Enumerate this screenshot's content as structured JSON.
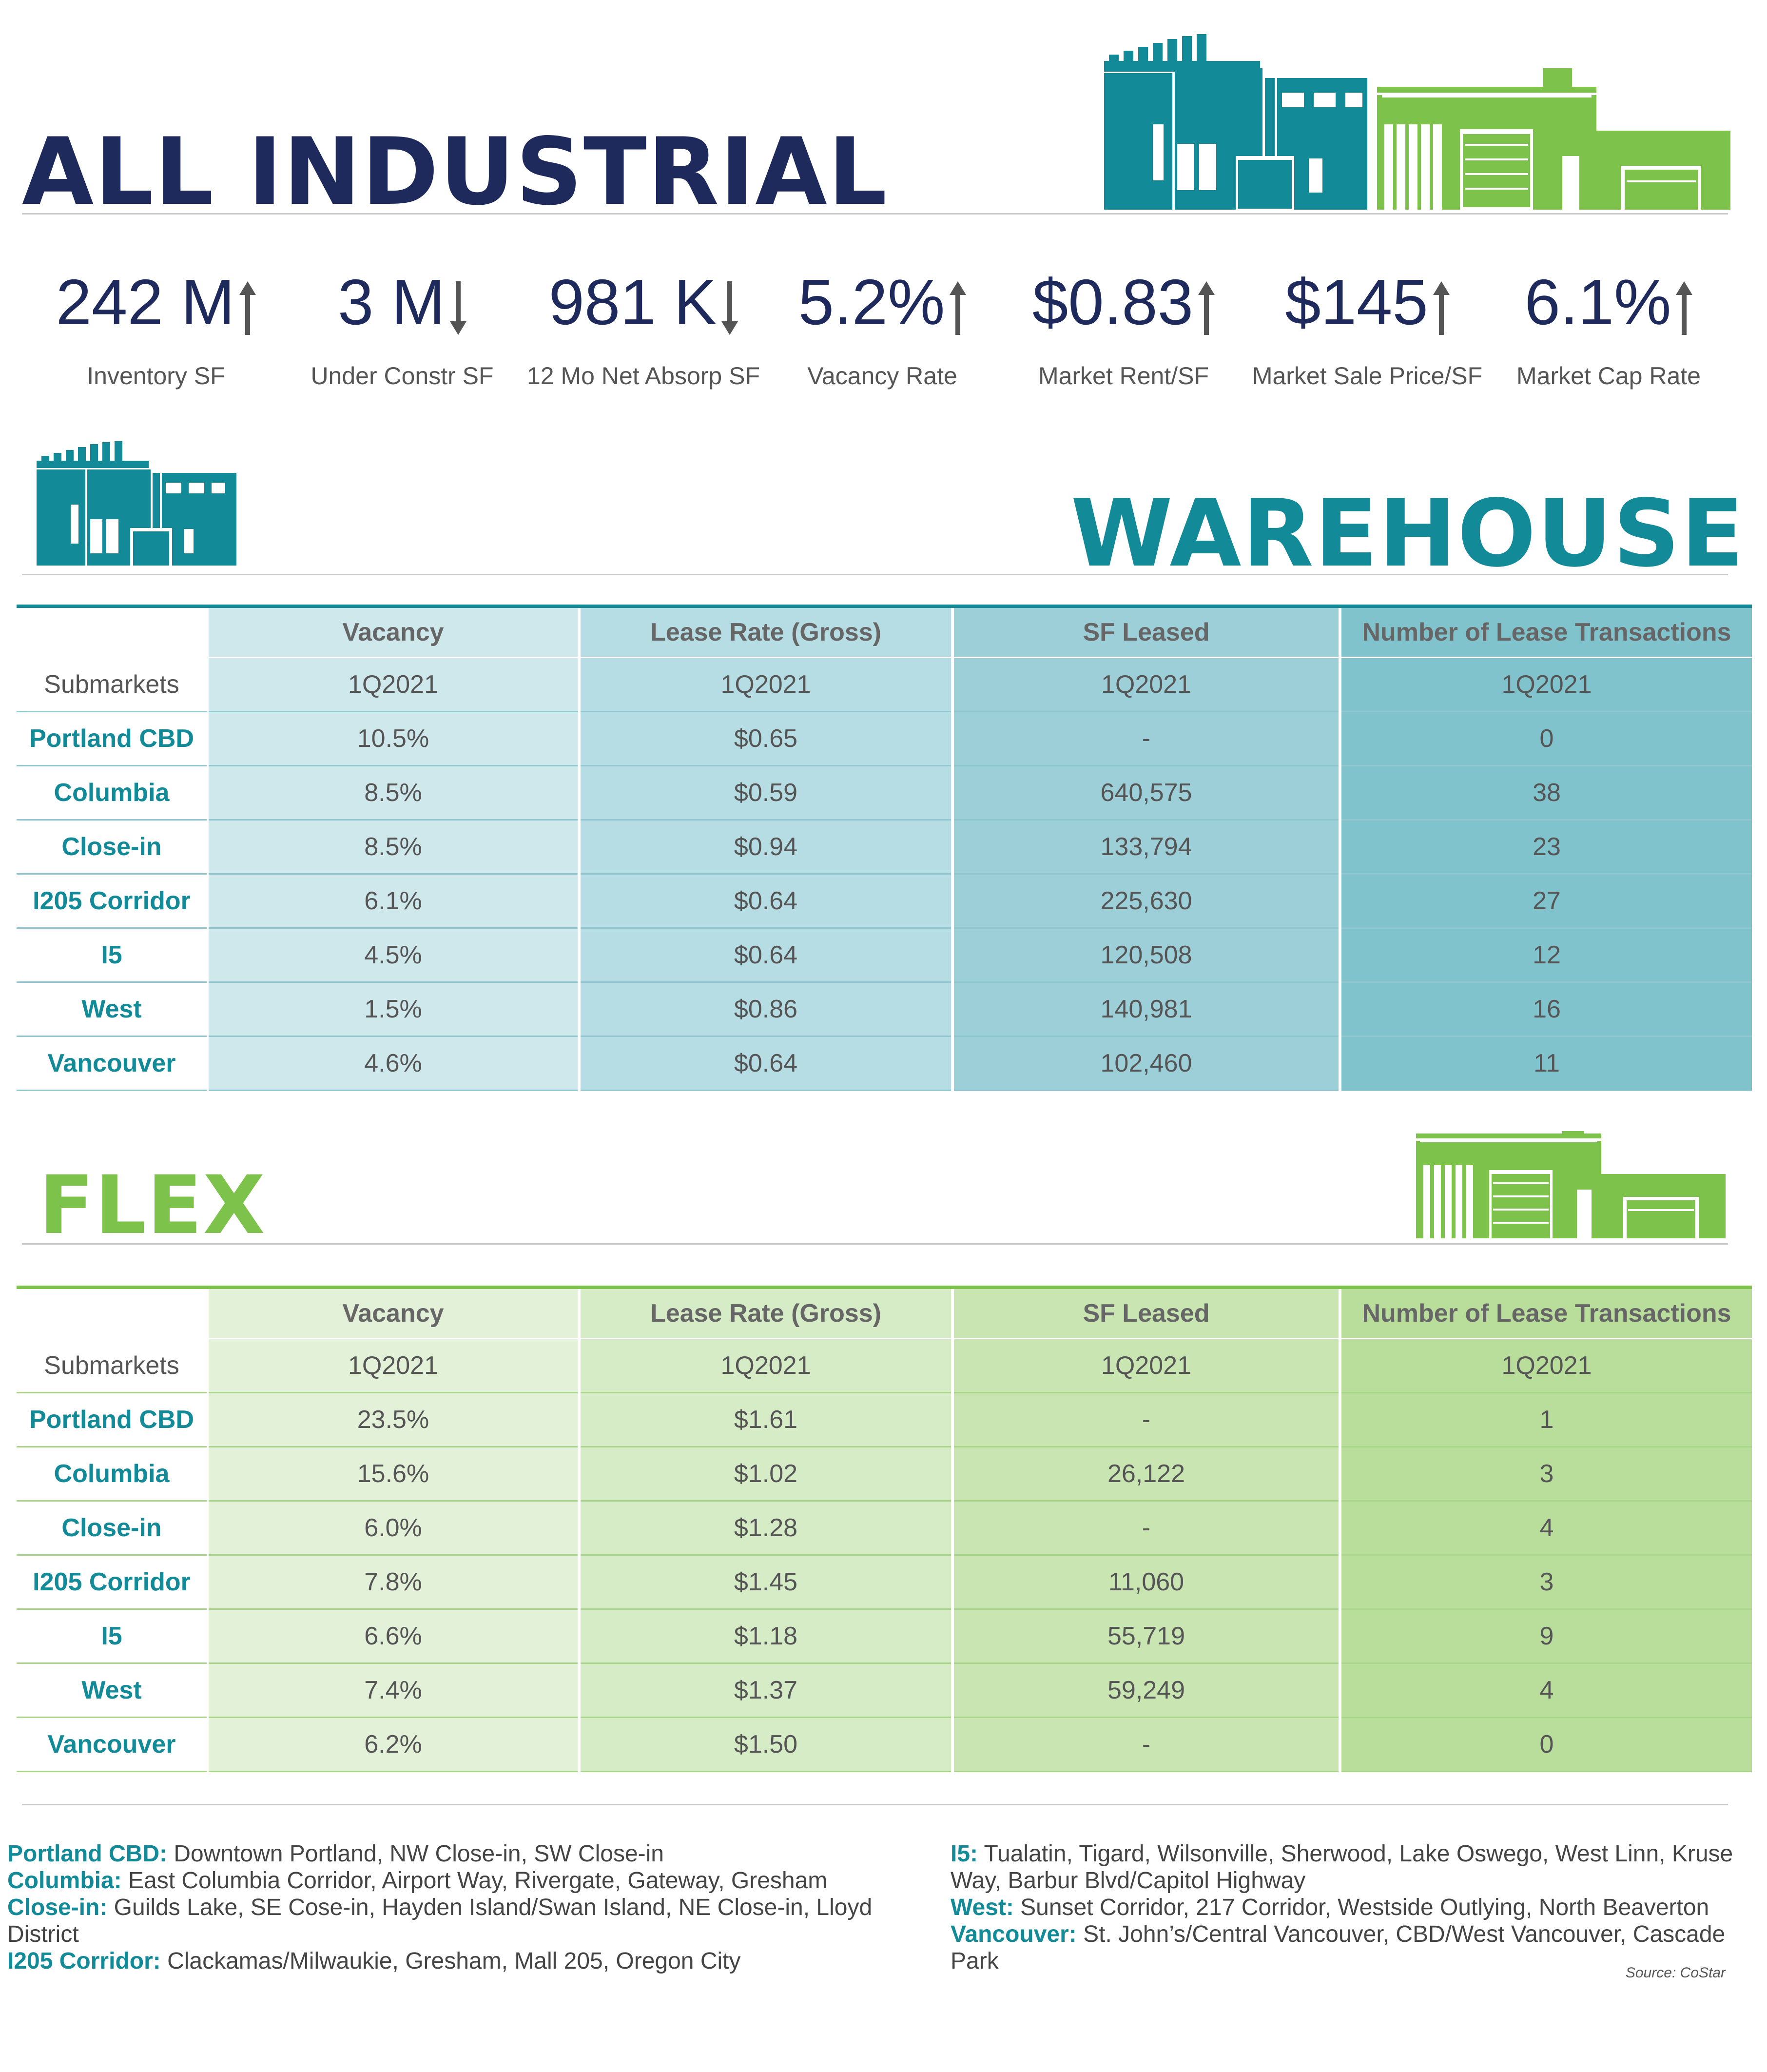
{
  "all_industrial": {
    "title": "ALL INDUSTRIAL",
    "stats": [
      {
        "value": "242 M",
        "label": "Inventory SF",
        "trend": "up"
      },
      {
        "value": "3 M",
        "label": "Under Constr SF",
        "trend": "down"
      },
      {
        "value": "981 K",
        "label": "12 Mo Net Absorp SF",
        "trend": "down"
      },
      {
        "value": "5.2%",
        "label": "Vacancy Rate",
        "trend": "up"
      },
      {
        "value": "$0.83",
        "label": "Market Rent/SF",
        "trend": "up"
      },
      {
        "value": "$145",
        "label": "Market Sale Price/SF",
        "trend": "up"
      },
      {
        "value": "6.1%",
        "label": "Market Cap Rate",
        "trend": "up"
      }
    ]
  },
  "warehouse": {
    "title": "WAREHOUSE",
    "headers": [
      "Vacancy",
      "Lease Rate (Gross)",
      "SF Leased",
      "Number of Lease Transactions"
    ],
    "sub_label": "Submarkets",
    "period": "1Q2021",
    "rows": [
      {
        "name": "Portland CBD",
        "vacancy": "10.5%",
        "lease_rate": "$0.65",
        "sf_leased": "-",
        "transactions": "0"
      },
      {
        "name": "Columbia",
        "vacancy": "8.5%",
        "lease_rate": "$0.59",
        "sf_leased": "640,575",
        "transactions": "38"
      },
      {
        "name": "Close-in",
        "vacancy": "8.5%",
        "lease_rate": "$0.94",
        "sf_leased": "133,794",
        "transactions": "23"
      },
      {
        "name": "I205 Corridor",
        "vacancy": "6.1%",
        "lease_rate": "$0.64",
        "sf_leased": "225,630",
        "transactions": "27"
      },
      {
        "name": "I5",
        "vacancy": "4.5%",
        "lease_rate": "$0.64",
        "sf_leased": "120,508",
        "transactions": "12"
      },
      {
        "name": "West",
        "vacancy": "1.5%",
        "lease_rate": "$0.86",
        "sf_leased": "140,981",
        "transactions": "16"
      },
      {
        "name": "Vancouver",
        "vacancy": "4.6%",
        "lease_rate": "$0.64",
        "sf_leased": "102,460",
        "transactions": "11"
      }
    ]
  },
  "flex": {
    "title": "FLEX",
    "headers": [
      "Vacancy",
      "Lease Rate (Gross)",
      "SF Leased",
      "Number of Lease Transactions"
    ],
    "sub_label": "Submarkets",
    "period": "1Q2021",
    "rows": [
      {
        "name": "Portland CBD",
        "vacancy": "23.5%",
        "lease_rate": "$1.61",
        "sf_leased": "-",
        "transactions": "1"
      },
      {
        "name": "Columbia",
        "vacancy": "15.6%",
        "lease_rate": "$1.02",
        "sf_leased": "26,122",
        "transactions": "3"
      },
      {
        "name": "Close-in",
        "vacancy": "6.0%",
        "lease_rate": "$1.28",
        "sf_leased": "-",
        "transactions": "4"
      },
      {
        "name": "I205 Corridor",
        "vacancy": "7.8%",
        "lease_rate": "$1.45",
        "sf_leased": "11,060",
        "transactions": "3"
      },
      {
        "name": "I5",
        "vacancy": "6.6%",
        "lease_rate": "$1.18",
        "sf_leased": "55,719",
        "transactions": "9"
      },
      {
        "name": "West",
        "vacancy": "7.4%",
        "lease_rate": "$1.37",
        "sf_leased": "59,249",
        "transactions": "4"
      },
      {
        "name": "Vancouver",
        "vacancy": "6.2%",
        "lease_rate": "$1.50",
        "sf_leased": "-",
        "transactions": "0"
      }
    ]
  },
  "notes": {
    "left": [
      {
        "term": "Portland CBD:",
        "text": " Downtown Portland, NW Close-in, SW Close-in"
      },
      {
        "term": "Columbia:",
        "text": " East Columbia Corridor, Airport Way, Rivergate, Gateway, Gresham"
      },
      {
        "term": "Close-in:",
        "text": " Guilds Lake, SE Cose-in, Hayden Island/Swan Island, NE Close-in, Lloyd District"
      },
      {
        "term": "I205 Corridor:",
        "text": " Clackamas/Milwaukie, Gresham, Mall 205, Oregon City"
      }
    ],
    "right": [
      {
        "term": "I5:",
        "text": " Tualatin, Tigard, Wilsonville, Sherwood, Lake Oswego, West Linn, Kruse Way, Barbur Blvd/Capitol Highway"
      },
      {
        "term": "West:",
        "text": " Sunset Corridor, 217 Corridor, Westside Outlying, North Beaverton"
      },
      {
        "term": "Vancouver:",
        "text": " St. John’s/Central Vancouver, CBD/West Vancouver, Cascade Park"
      }
    ],
    "source": "Source: CoStar"
  },
  "colors": {
    "navy": "#1f2a5c",
    "teal": "#138a97",
    "green": "#7dc24a",
    "arrow": "#555555"
  },
  "icons": {
    "warehouse_building": "warehouse-building-icon",
    "flex_building": "flex-building-icon",
    "trend_up": "arrow-up-icon",
    "trend_down": "arrow-down-icon"
  }
}
